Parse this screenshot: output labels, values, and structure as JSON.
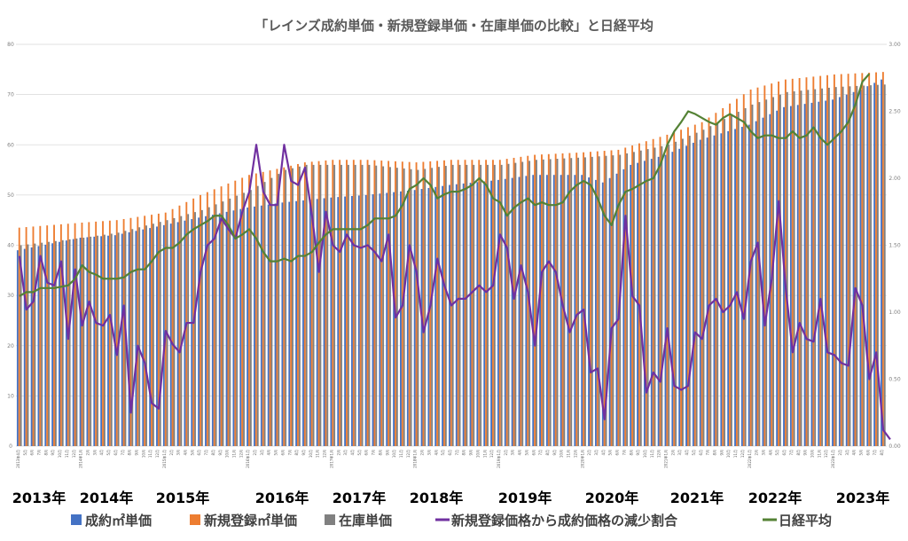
{
  "chart_data": {
    "type": "bar",
    "title": "「レインズ成約単価・新規登録単価・在庫単価の比較」と日経平均",
    "y_left_ticks": [
      "0",
      "10",
      "20",
      "30",
      "40",
      "50",
      "60",
      "70",
      "80"
    ],
    "y_right_ticks": [
      "0.00",
      "0.50",
      "1.00",
      "1.50",
      "2.00",
      "2.50",
      "3.00"
    ],
    "ylim_left": [
      0,
      80
    ],
    "ylim_right": [
      0,
      3
    ],
    "year_labels": [
      "2013年",
      "2014年",
      "2015年",
      "2016年",
      "2017年",
      "2018年",
      "2019年",
      "2020年",
      "2021年",
      "2022年",
      "2023年"
    ],
    "start": "2013-04",
    "end": "2023-08",
    "grid": true,
    "legend_position": "bottom",
    "series": [
      {
        "name": "成約㎡単価",
        "color": "#4472c4",
        "anchors": [
          [
            "2013-04",
            39
          ],
          [
            "2014-01",
            41.5
          ],
          [
            "2014-06",
            42
          ],
          [
            "2015-01",
            44
          ],
          [
            "2015-06",
            45.5
          ],
          [
            "2016-01",
            47.5
          ],
          [
            "2016-06",
            48.5
          ],
          [
            "2017-01",
            49.5
          ],
          [
            "2017-06",
            50
          ],
          [
            "2018-01",
            51
          ],
          [
            "2018-06",
            52
          ],
          [
            "2019-01",
            53
          ],
          [
            "2019-06",
            54
          ],
          [
            "2020-01",
            54
          ],
          [
            "2020-04",
            52.5
          ],
          [
            "2020-08",
            56
          ],
          [
            "2021-01",
            58
          ],
          [
            "2021-06",
            61
          ],
          [
            "2022-01",
            64
          ],
          [
            "2022-06",
            67.5
          ],
          [
            "2023-01",
            69
          ],
          [
            "2023-05",
            71
          ],
          [
            "2023-08",
            73
          ]
        ]
      },
      {
        "name": "新規登録㎡単価",
        "color": "#ed7d31",
        "anchors": [
          [
            "2013-04",
            43.5
          ],
          [
            "2014-01",
            44.5
          ],
          [
            "2014-06",
            45
          ],
          [
            "2015-01",
            46.5
          ],
          [
            "2015-06",
            50
          ],
          [
            "2016-01",
            54
          ],
          [
            "2016-06",
            55.5
          ],
          [
            "2016-09",
            56.5
          ],
          [
            "2017-01",
            57
          ],
          [
            "2017-06",
            57
          ],
          [
            "2018-01",
            56.5
          ],
          [
            "2018-06",
            57
          ],
          [
            "2019-01",
            57
          ],
          [
            "2019-06",
            58
          ],
          [
            "2020-01",
            58.5
          ],
          [
            "2020-06",
            59
          ],
          [
            "2021-01",
            62
          ],
          [
            "2021-06",
            64.5
          ],
          [
            "2022-01",
            71
          ],
          [
            "2022-06",
            73
          ],
          [
            "2023-01",
            74
          ],
          [
            "2023-08",
            74.5
          ]
        ]
      },
      {
        "name": "在庫単価",
        "color": "#808080",
        "anchors": [
          [
            "2013-04",
            40
          ],
          [
            "2014-01",
            41.5
          ],
          [
            "2014-06",
            42.5
          ],
          [
            "2015-01",
            45
          ],
          [
            "2015-06",
            47
          ],
          [
            "2016-01",
            51
          ],
          [
            "2016-06",
            55
          ],
          [
            "2016-09",
            56
          ],
          [
            "2017-01",
            56
          ],
          [
            "2017-06",
            56
          ],
          [
            "2018-01",
            55
          ],
          [
            "2018-06",
            56
          ],
          [
            "2019-01",
            56
          ],
          [
            "2019-06",
            57
          ],
          [
            "2020-01",
            57.5
          ],
          [
            "2020-06",
            58
          ],
          [
            "2021-01",
            60
          ],
          [
            "2021-06",
            63
          ],
          [
            "2022-01",
            68
          ],
          [
            "2022-06",
            70.5
          ],
          [
            "2023-01",
            71.5
          ],
          [
            "2023-08",
            72
          ]
        ]
      },
      {
        "name": "新規登録価格から成約価格の減少割合",
        "color": "#7030a0",
        "axis": "right",
        "values": [
          1.42,
          1.02,
          1.08,
          1.42,
          1.22,
          1.2,
          1.38,
          0.8,
          1.32,
          0.9,
          1.08,
          0.92,
          0.9,
          0.98,
          0.68,
          1.05,
          0.25,
          0.75,
          0.62,
          0.32,
          0.28,
          0.86,
          0.76,
          0.7,
          0.92,
          0.92,
          1.3,
          1.5,
          1.55,
          1.7,
          1.62,
          1.55,
          1.75,
          1.9,
          2.25,
          1.9,
          1.8,
          1.8,
          2.25,
          1.98,
          1.95,
          2.08,
          1.72,
          1.3,
          1.75,
          1.5,
          1.45,
          1.58,
          1.5,
          1.48,
          1.5,
          1.45,
          1.38,
          1.58,
          0.96,
          1.05,
          1.5,
          1.3,
          0.85,
          1.05,
          1.4,
          1.2,
          1.05,
          1.1,
          1.1,
          1.15,
          1.2,
          1.15,
          1.2,
          1.58,
          1.48,
          1.1,
          1.35,
          1.15,
          0.75,
          1.3,
          1.38,
          1.3,
          1.05,
          0.85,
          0.98,
          1.02,
          0.55,
          0.58,
          0.2,
          0.88,
          0.95,
          1.72,
          1.12,
          1.05,
          0.4,
          0.55,
          0.48,
          0.88,
          0.45,
          0.42,
          0.45,
          0.85,
          0.8,
          1.05,
          1.1,
          1.0,
          1.05,
          1.15,
          0.95,
          1.38,
          1.52,
          0.9,
          1.25,
          1.83,
          1.18,
          0.7,
          0.92,
          0.8,
          0.78,
          1.1,
          0.7,
          0.68,
          0.62,
          0.6,
          1.18,
          1.05,
          0.5,
          0.7,
          0.12,
          0.05
        ]
      },
      {
        "name": "日経平均",
        "color": "#548235",
        "axis": "right",
        "values": [
          1.12,
          1.15,
          1.15,
          1.18,
          1.18,
          1.18,
          1.19,
          1.2,
          1.25,
          1.35,
          1.3,
          1.28,
          1.25,
          1.25,
          1.25,
          1.26,
          1.3,
          1.32,
          1.32,
          1.38,
          1.45,
          1.48,
          1.48,
          1.52,
          1.58,
          1.62,
          1.65,
          1.68,
          1.72,
          1.72,
          1.65,
          1.55,
          1.58,
          1.62,
          1.55,
          1.45,
          1.38,
          1.38,
          1.4,
          1.38,
          1.42,
          1.42,
          1.45,
          1.52,
          1.58,
          1.62,
          1.62,
          1.62,
          1.62,
          1.62,
          1.65,
          1.7,
          1.7,
          1.7,
          1.72,
          1.8,
          1.92,
          1.95,
          2.0,
          1.95,
          1.85,
          1.88,
          1.9,
          1.9,
          1.92,
          1.95,
          2.0,
          1.95,
          1.85,
          1.82,
          1.72,
          1.78,
          1.82,
          1.85,
          1.8,
          1.82,
          1.8,
          1.8,
          1.82,
          1.9,
          1.95,
          1.98,
          1.95,
          1.85,
          1.72,
          1.65,
          1.8,
          1.9,
          1.92,
          1.95,
          1.98,
          2.0,
          2.1,
          2.25,
          2.35,
          2.42,
          2.5,
          2.48,
          2.45,
          2.42,
          2.4,
          2.45,
          2.48,
          2.45,
          2.42,
          2.35,
          2.3,
          2.32,
          2.32,
          2.3,
          2.3,
          2.35,
          2.3,
          2.32,
          2.38,
          2.3,
          2.25,
          2.3,
          2.35,
          2.42,
          2.55,
          2.72,
          2.78
        ]
      }
    ]
  }
}
